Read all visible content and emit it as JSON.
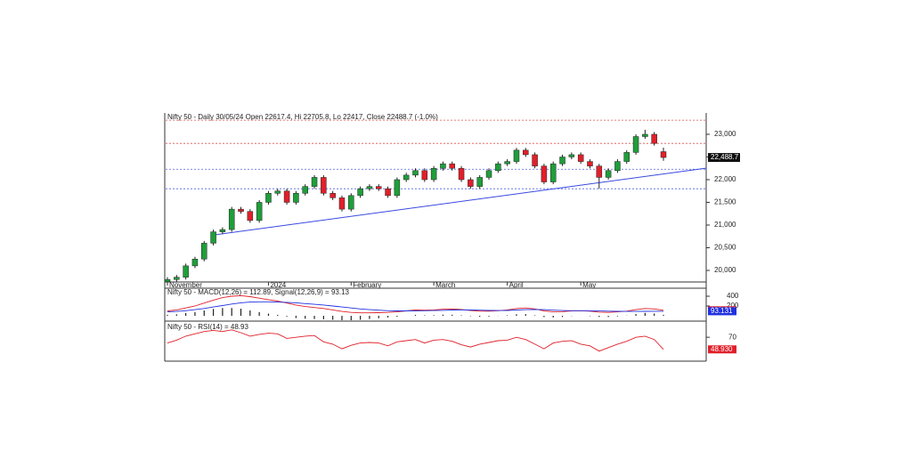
{
  "chart_data": {
    "type": "candlestick",
    "title": "Nifty 50 - Daily 30/05/24 Open 22617.4, Hi 22705.8, Lo 22417, Close 22488.7 (-1.0%)",
    "categories": [
      "November",
      null,
      null,
      null,
      null,
      null,
      null,
      null,
      null,
      null,
      null,
      "2024",
      null,
      null,
      null,
      null,
      null,
      null,
      null,
      null,
      "February",
      null,
      null,
      null,
      null,
      null,
      null,
      null,
      null,
      "March",
      null,
      null,
      null,
      null,
      null,
      null,
      null,
      "April",
      null,
      null,
      null,
      null,
      null,
      null,
      null,
      "May",
      null,
      null,
      null,
      null,
      null,
      null,
      null,
      null,
      null
    ],
    "open": [
      19750,
      19800,
      19850,
      20100,
      20250,
      20600,
      20850,
      20900,
      21350,
      21300,
      21100,
      21500,
      21700,
      21750,
      21500,
      21700,
      21850,
      22050,
      21700,
      21600,
      21350,
      21650,
      21800,
      21850,
      21800,
      21650,
      22000,
      22100,
      22200,
      22000,
      22250,
      22350,
      22250,
      22000,
      21850,
      22050,
      22200,
      22350,
      22400,
      22650,
      22550,
      22300,
      21950,
      22350,
      22500,
      22550,
      22400,
      22300,
      22050,
      22200,
      22400,
      22600,
      22950,
      23000,
      22617.4
    ],
    "high": [
      19850,
      19900,
      20150,
      20300,
      20650,
      20900,
      20950,
      21400,
      21400,
      21350,
      21550,
      21750,
      21800,
      21800,
      21750,
      21900,
      22100,
      22100,
      21750,
      21650,
      21700,
      21850,
      21900,
      21900,
      21850,
      22050,
      22150,
      22250,
      22250,
      22300,
      22400,
      22400,
      22300,
      22050,
      22100,
      22250,
      22400,
      22450,
      22700,
      22700,
      22600,
      22350,
      22400,
      22550,
      22600,
      22600,
      22450,
      22350,
      22250,
      22450,
      22650,
      23000,
      23100,
      23050,
      22705.8
    ],
    "low": [
      19700,
      19750,
      19800,
      20050,
      20200,
      20550,
      20800,
      20850,
      21250,
      21050,
      21050,
      21450,
      21650,
      21450,
      21450,
      21650,
      21800,
      21650,
      21550,
      21300,
      21300,
      21600,
      21750,
      21750,
      21600,
      21600,
      21950,
      22050,
      21950,
      21950,
      22200,
      22200,
      21950,
      21800,
      21800,
      22000,
      22150,
      22300,
      22350,
      22500,
      22250,
      21900,
      21900,
      22300,
      22450,
      22350,
      22250,
      21800,
      22000,
      22150,
      22350,
      22550,
      22900,
      22750,
      22417
    ],
    "close": [
      19800,
      19850,
      20100,
      20250,
      20600,
      20850,
      20900,
      21350,
      21300,
      21100,
      21500,
      21700,
      21750,
      21500,
      21700,
      21850,
      22050,
      21700,
      21600,
      21350,
      21650,
      21800,
      21850,
      21800,
      21650,
      22000,
      22100,
      22200,
      22000,
      22250,
      22350,
      22250,
      22000,
      21850,
      22050,
      22200,
      22350,
      22400,
      22650,
      22550,
      22300,
      21950,
      22350,
      22500,
      22550,
      22400,
      22300,
      22050,
      22200,
      22400,
      22600,
      22950,
      23000,
      22800,
      22488.7
    ],
    "up_color": "#1f9e3a",
    "down_color": "#e0202a",
    "ylim": [
      19745,
      23470
    ],
    "yticks": [
      {
        "value": 20000,
        "label": "20,000"
      },
      {
        "value": 20500,
        "label": "20,500"
      },
      {
        "value": 21000,
        "label": "21,000"
      },
      {
        "value": 21500,
        "label": "21,500"
      },
      {
        "value": 22000,
        "label": "22,000"
      },
      {
        "value": 22500,
        "label": "22,500"
      },
      {
        "value": 23000,
        "label": "23,000"
      }
    ],
    "last_value_label": "22,488.7",
    "levels": [
      {
        "value": 23310,
        "color": "#e05050"
      },
      {
        "value": 22800,
        "color": "#e05050"
      },
      {
        "value": 22230,
        "color": "#5060e0"
      },
      {
        "value": 21800,
        "color": "#5060e0"
      }
    ],
    "trendline": {
      "color": "#3848e0",
      "from": {
        "index": 5,
        "value": 20780
      },
      "to": {
        "index": 58.7,
        "value": 22255
      }
    },
    "macd": {
      "label": "Nifty 50 - MACD(12,26) = 112.89, Signal(12,26,9) = 93.13",
      "ylim": [
        -90,
        545
      ],
      "yticks": [
        200,
        400
      ],
      "series": [
        {
          "name": "MACD(12,26)",
          "color": "#e0202a",
          "value_label": "112.894",
          "values": [
            100,
            120,
            160,
            200,
            260,
            320,
            370,
            400,
            410,
            390,
            360,
            330,
            300,
            260,
            220,
            190,
            170,
            150,
            120,
            90,
            70,
            60,
            60,
            65,
            70,
            80,
            100,
            120,
            115,
            120,
            135,
            140,
            130,
            110,
            95,
            95,
            105,
            120,
            150,
            160,
            140,
            100,
            80,
            85,
            100,
            105,
            95,
            75,
            70,
            80,
            95,
            125,
            150,
            140,
            112.89
          ]
        },
        {
          "name": "Signal(12,26,9)",
          "color": "#2030e0",
          "value_label": "93.131",
          "values": [
            80,
            90,
            105,
            125,
            150,
            180,
            210,
            240,
            265,
            280,
            285,
            285,
            280,
            275,
            265,
            250,
            235,
            220,
            200,
            180,
            160,
            140,
            125,
            115,
            105,
            100,
            100,
            102,
            105,
            108,
            112,
            118,
            120,
            118,
            115,
            110,
            108,
            110,
            118,
            125,
            130,
            125,
            115,
            108,
            105,
            104,
            103,
            99,
            95,
            92,
            90,
            89,
            91,
            93,
            93.13
          ]
        }
      ],
      "histogram": [
        20,
        30,
        55,
        75,
        110,
        140,
        160,
        160,
        145,
        110,
        75,
        45,
        20,
        -15,
        -45,
        -60,
        -65,
        -70,
        -80,
        -90,
        -90,
        -80,
        -65,
        -50,
        -35,
        -20,
        0,
        18,
        10,
        12,
        23,
        22,
        10,
        -8,
        -20,
        -15,
        -3,
        10,
        32,
        35,
        10,
        -25,
        -35,
        -23,
        -5,
        1,
        -8,
        -24,
        -25,
        -12,
        5,
        36,
        59,
        47,
        19.76
      ]
    },
    "rsi": {
      "label": "Nifty 50 - RSI(14) = 48.93",
      "ylim": [
        30,
        95
      ],
      "yticks": [
        70
      ],
      "color": "#e0202a",
      "value_label": "48.930",
      "values": [
        60,
        65,
        72,
        76,
        80,
        82,
        80,
        83,
        78,
        72,
        75,
        77,
        76,
        68,
        70,
        72,
        73,
        62,
        58,
        50,
        56,
        60,
        61,
        60,
        55,
        62,
        64,
        66,
        60,
        65,
        66,
        63,
        57,
        53,
        58,
        61,
        64,
        65,
        70,
        66,
        58,
        50,
        60,
        63,
        64,
        58,
        55,
        46,
        52,
        58,
        63,
        70,
        72,
        66,
        48.93
      ]
    }
  }
}
